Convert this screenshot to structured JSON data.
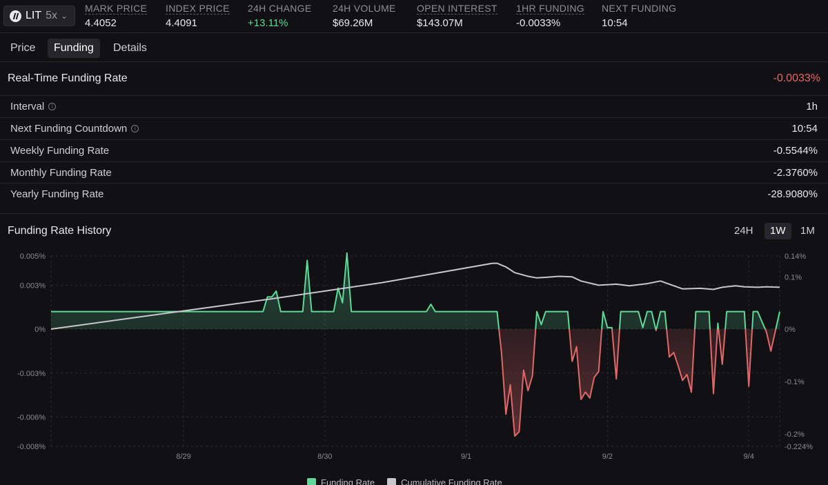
{
  "market": {
    "symbol": "LIT",
    "leverage": "5x"
  },
  "stats": [
    {
      "label": "MARK PRICE",
      "value": "4.4052",
      "dotted": true,
      "tone": "neutral"
    },
    {
      "label": "INDEX PRICE",
      "value": "4.4091",
      "dotted": true,
      "tone": "neutral"
    },
    {
      "label": "24H CHANGE",
      "value": "+13.11%",
      "dotted": false,
      "tone": "positive"
    },
    {
      "label": "24H VOLUME",
      "value": "$69.26M",
      "dotted": false,
      "tone": "neutral"
    },
    {
      "label": "OPEN INTEREST",
      "value": "$143.07M",
      "dotted": true,
      "tone": "neutral"
    },
    {
      "label": "1HR FUNDING",
      "value": "-0.0033%",
      "dotted": true,
      "tone": "neutral"
    },
    {
      "label": "NEXT FUNDING",
      "value": "10:54",
      "dotted": false,
      "tone": "neutral"
    }
  ],
  "tabs": [
    {
      "label": "Price",
      "active": false
    },
    {
      "label": "Funding",
      "active": true
    },
    {
      "label": "Details",
      "active": false
    }
  ],
  "realtime": {
    "title": "Real-Time Funding Rate",
    "value": "-0.0033%"
  },
  "rates": [
    {
      "label": "Interval",
      "value": "1h",
      "info": true
    },
    {
      "label": "Next Funding Countdown",
      "value": "10:54",
      "info": true
    },
    {
      "label": "Weekly Funding Rate",
      "value": "-0.5544%",
      "info": false
    },
    {
      "label": "Monthly Funding Rate",
      "value": "-2.3760%",
      "info": false
    },
    {
      "label": "Yearly Funding Rate",
      "value": "-28.9080%",
      "info": false
    }
  ],
  "history": {
    "title": "Funding Rate History",
    "ranges": [
      {
        "label": "24H",
        "active": false
      },
      {
        "label": "1W",
        "active": true
      },
      {
        "label": "1M",
        "active": false
      }
    ]
  },
  "colors": {
    "positive": "#5fd99a",
    "negative": "#e0686a",
    "cumulative": "#c8c8cc",
    "grid": "#2e2e34"
  },
  "chart_data": {
    "type": "line",
    "left_axis": {
      "ticks": [
        {
          "label": "0.005%",
          "value": 0.005
        },
        {
          "label": "0.003%",
          "value": 0.003
        },
        {
          "label": "0%",
          "value": 0
        },
        {
          "label": "-0.003%",
          "value": -0.003
        },
        {
          "label": "-0.006%",
          "value": -0.006
        },
        {
          "label": "-0.008%",
          "value": -0.008
        }
      ],
      "range": [
        -0.008,
        0.005
      ]
    },
    "right_axis": {
      "ticks": [
        {
          "label": "0.14%",
          "value": 0.14
        },
        {
          "label": "0.1%",
          "value": 0.1
        },
        {
          "label": "0%",
          "value": 0
        },
        {
          "label": "-0.1%",
          "value": -0.1
        },
        {
          "label": "-0.2%",
          "value": -0.2
        },
        {
          "label": "-0.224%",
          "value": -0.224
        }
      ],
      "range": [
        -0.224,
        0.14
      ]
    },
    "x_axis": {
      "range": [
        0,
        160
      ],
      "ticks": [
        {
          "label": "8/29",
          "t": 25
        },
        {
          "label": "8/30",
          "t": 57
        },
        {
          "label": "9/1",
          "t": 89
        },
        {
          "label": "9/2",
          "t": 121
        },
        {
          "label": "9/4",
          "t": 153
        }
      ]
    },
    "series": [
      {
        "name": "Funding Rate",
        "axis": "left",
        "points": [
          [
            0,
            0.0012
          ],
          [
            48,
            0.0012
          ],
          [
            49,
            0.0022
          ],
          [
            50,
            0.0022
          ],
          [
            51,
            0.0026
          ],
          [
            52,
            0.0012
          ],
          [
            57,
            0.0012
          ],
          [
            58,
            0.0047
          ],
          [
            59,
            0.0012
          ],
          [
            64,
            0.0012
          ],
          [
            65,
            0.0028
          ],
          [
            66,
            0.0018
          ],
          [
            67,
            0.0052
          ],
          [
            68,
            0.0012
          ],
          [
            85,
            0.0012
          ],
          [
            86,
            0.0017
          ],
          [
            87,
            0.0012
          ],
          [
            101,
            0.0012
          ],
          [
            102,
            -0.0016
          ],
          [
            103,
            -0.0058
          ],
          [
            104,
            -0.0038
          ],
          [
            105,
            -0.0073
          ],
          [
            106,
            -0.007
          ],
          [
            107,
            -0.0028
          ],
          [
            108,
            -0.0042
          ],
          [
            109,
            -0.0032
          ],
          [
            110,
            0.0012
          ],
          [
            111,
            0.0003
          ],
          [
            112,
            0.0012
          ],
          [
            117,
            0.0012
          ],
          [
            118,
            -0.0022
          ],
          [
            119,
            -0.0012
          ],
          [
            120,
            -0.0048
          ],
          [
            121,
            -0.0043
          ],
          [
            122,
            -0.0047
          ],
          [
            123,
            -0.0033
          ],
          [
            124,
            -0.0029
          ],
          [
            125,
            0.0012
          ],
          [
            126,
            0.0001
          ],
          [
            127,
            0.0001
          ],
          [
            128,
            -0.0034
          ],
          [
            129,
            0.0012
          ],
          [
            133,
            0.0012
          ],
          [
            134,
            0.0001
          ],
          [
            135,
            0.0012
          ],
          [
            136,
            0.0012
          ],
          [
            137,
            -0.0001
          ],
          [
            138,
            0.0012
          ],
          [
            139,
            0.0012
          ],
          [
            140,
            -0.0019
          ],
          [
            141,
            -0.0016
          ],
          [
            142,
            -0.0025
          ],
          [
            143,
            -0.0035
          ],
          [
            144,
            -0.0031
          ],
          [
            145,
            -0.0043
          ],
          [
            146,
            0.0012
          ],
          [
            149,
            0.0012
          ],
          [
            150,
            -0.0044
          ],
          [
            151,
            0.0004
          ],
          [
            152,
            -0.0024
          ],
          [
            153,
            0.0012
          ],
          [
            157,
            0.0012
          ],
          [
            158,
            -0.0039
          ],
          [
            159,
            0.0012
          ],
          [
            160,
            0.0012
          ],
          [
            162,
            -0.0002
          ],
          [
            163,
            -0.0015
          ],
          [
            165,
            0.0012
          ]
        ]
      },
      {
        "name": "Cumulative Funding Rate",
        "axis": "right",
        "points": [
          [
            0,
            0
          ],
          [
            50,
            0.058
          ],
          [
            75,
            0.089
          ],
          [
            100,
            0.126
          ],
          [
            101,
            0.126
          ],
          [
            103,
            0.119
          ],
          [
            105,
            0.108
          ],
          [
            108,
            0.101
          ],
          [
            110,
            0.098
          ],
          [
            112,
            0.099
          ],
          [
            115,
            0.101
          ],
          [
            118,
            0.1
          ],
          [
            120,
            0.092
          ],
          [
            124,
            0.084
          ],
          [
            126,
            0.085
          ],
          [
            128,
            0.086
          ],
          [
            131,
            0.083
          ],
          [
            135,
            0.087
          ],
          [
            138,
            0.092
          ],
          [
            141,
            0.083
          ],
          [
            143,
            0.077
          ],
          [
            147,
            0.078
          ],
          [
            150,
            0.076
          ],
          [
            152,
            0.08
          ],
          [
            155,
            0.083
          ],
          [
            157,
            0.081
          ],
          [
            160,
            0.08
          ],
          [
            162,
            0.081
          ],
          [
            165,
            0.08
          ]
        ]
      }
    ]
  }
}
